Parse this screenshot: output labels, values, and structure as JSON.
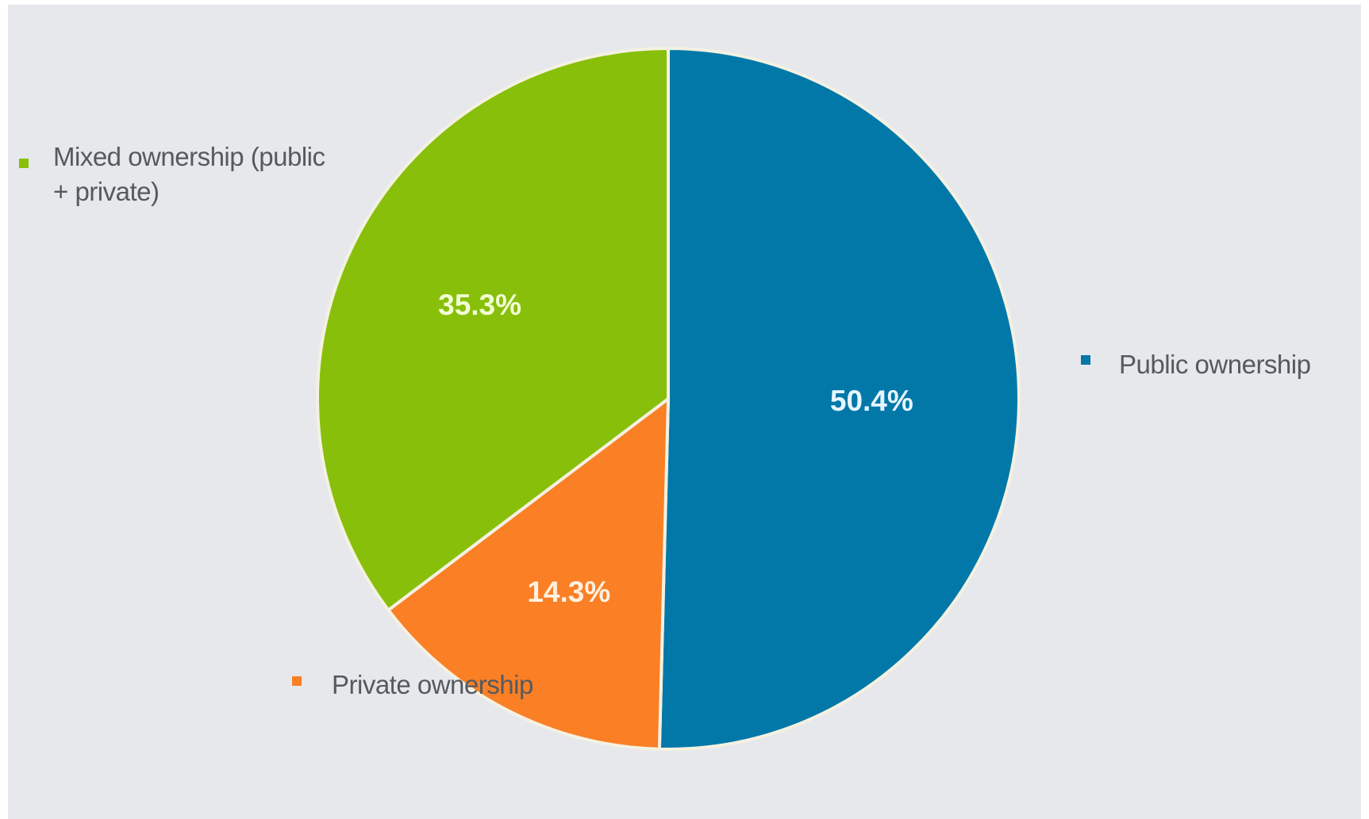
{
  "chart_data": {
    "type": "pie",
    "title": "",
    "slices": [
      {
        "name": "Public ownership",
        "value": 50.4,
        "label": "50.4%",
        "color": "#0278a9",
        "label_color": "#e6f6ff"
      },
      {
        "name": "Private ownership",
        "value": 14.3,
        "label": "14.3%",
        "color": "#fa7f25",
        "label_color": "#fff1e0"
      },
      {
        "name": "Mixed ownership (public + private)",
        "value": 35.3,
        "label": "35.3%",
        "color": "#88bf0a",
        "label_color": "#f2ffd6"
      }
    ],
    "legend": {
      "items": [
        {
          "label_lines": [
            "Mixed ownership (public",
            "+ private)"
          ],
          "color": "#88bf0a"
        },
        {
          "label_lines": [
            "Public ownership"
          ],
          "color": "#0278a9"
        },
        {
          "label_lines": [
            "Private ownership"
          ],
          "color": "#fa7f25"
        }
      ]
    },
    "start_angle_deg": 0,
    "direction": "clockwise",
    "separator_color": "#f4f1e2"
  }
}
